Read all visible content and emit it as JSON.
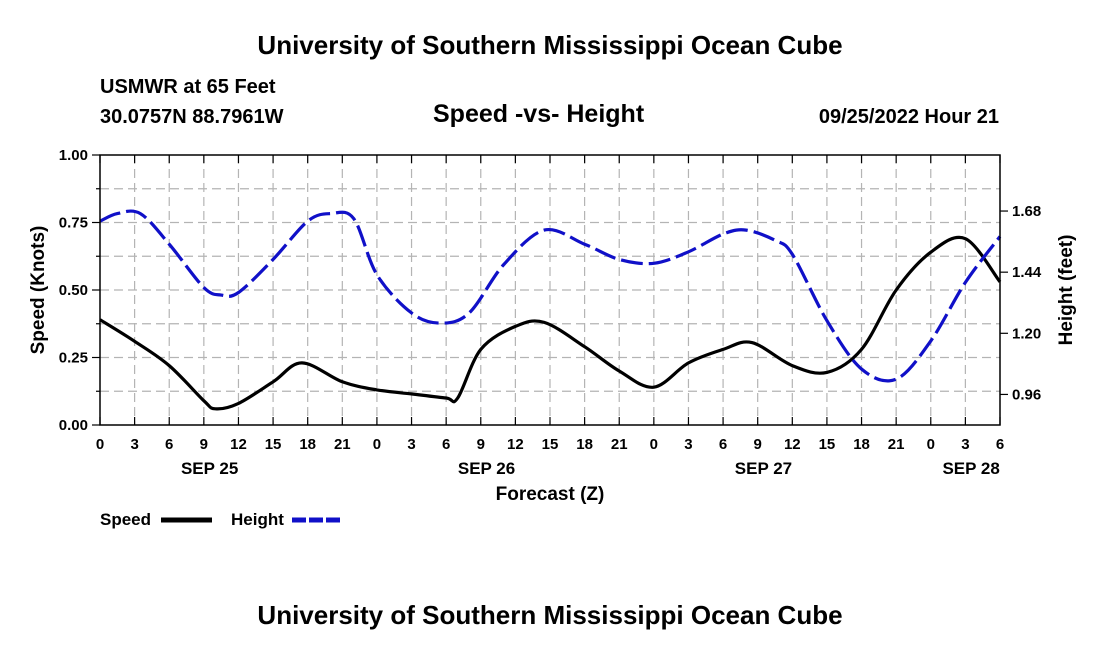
{
  "header": {
    "title_top": "University of Southern Mississippi Ocean Cube",
    "title_bottom": "University of Southern Mississippi Ocean Cube",
    "station": "USMWR at 65 Feet",
    "coordinates": "30.0757N  88.7961W",
    "datetime": "09/25/2022 Hour 21"
  },
  "chart_data": {
    "type": "line",
    "title": "Speed -vs- Height",
    "xlabel": "Forecast (Z)",
    "ylabel": "Speed (Knots)",
    "y2label": "Height (feet)",
    "xlim": [
      0,
      78
    ],
    "ylim": [
      0,
      1.0
    ],
    "y2lim": [
      0.84,
      1.9
    ],
    "x_tick_step": 3,
    "x_tick_labels": [
      "0",
      "3",
      "6",
      "9",
      "12",
      "15",
      "18",
      "21",
      "0",
      "3",
      "6",
      "9",
      "12",
      "15",
      "18",
      "21",
      "0",
      "3",
      "6",
      "9",
      "12",
      "15",
      "18",
      "21",
      "0",
      "3",
      "6"
    ],
    "y_ticks": [
      0,
      0.25,
      0.5,
      0.75,
      1.0
    ],
    "y_tick_labels": [
      "0.00",
      "0.25",
      "0.50",
      "0.75",
      "1.00"
    ],
    "y2_ticks": [
      0.96,
      1.2,
      1.44,
      1.68
    ],
    "y2_tick_labels": [
      "0.96",
      "1.20",
      "1.44",
      "1.68"
    ],
    "date_labels": [
      {
        "label": "SEP 25",
        "x": 9.5
      },
      {
        "label": "SEP 26",
        "x": 33.5
      },
      {
        "label": "SEP 27",
        "x": 57.5
      },
      {
        "label": "SEP 28",
        "x": 75.5
      }
    ],
    "grid": true,
    "series": [
      {
        "name": "Speed",
        "color": "#000000",
        "axis": "left",
        "dash": "solid",
        "x": [
          0,
          3,
          6,
          9,
          10,
          12,
          15,
          17.5,
          21,
          24,
          27,
          30,
          31,
          33,
          36,
          38.5,
          42,
          45,
          48,
          51,
          54,
          56.5,
          60,
          63,
          66,
          69,
          72,
          75,
          78
        ],
        "values": [
          0.39,
          0.31,
          0.22,
          0.09,
          0.06,
          0.08,
          0.16,
          0.23,
          0.16,
          0.13,
          0.115,
          0.1,
          0.1,
          0.28,
          0.365,
          0.38,
          0.29,
          0.2,
          0.14,
          0.23,
          0.28,
          0.305,
          0.22,
          0.195,
          0.28,
          0.5,
          0.64,
          0.69,
          0.53
        ]
      },
      {
        "name": "Height",
        "color": "#1010c8",
        "axis": "right",
        "dash": "dashed",
        "x": [
          0,
          1.5,
          3.5,
          6,
          9,
          10.5,
          12,
          15,
          18,
          20,
          22,
          24,
          27,
          29.5,
          32,
          35,
          38.5,
          42,
          45,
          48,
          51,
          54,
          56,
          58.5,
          60,
          63,
          66,
          69,
          72,
          75,
          78
        ],
        "values": [
          1.64,
          1.67,
          1.67,
          1.55,
          1.38,
          1.35,
          1.36,
          1.49,
          1.64,
          1.67,
          1.65,
          1.43,
          1.28,
          1.24,
          1.28,
          1.47,
          1.605,
          1.55,
          1.49,
          1.475,
          1.52,
          1.59,
          1.605,
          1.565,
          1.51,
          1.25,
          1.06,
          1.02,
          1.17,
          1.4,
          1.58
        ]
      }
    ]
  },
  "legend": {
    "speed_label": "Speed",
    "height_label": "Height"
  }
}
